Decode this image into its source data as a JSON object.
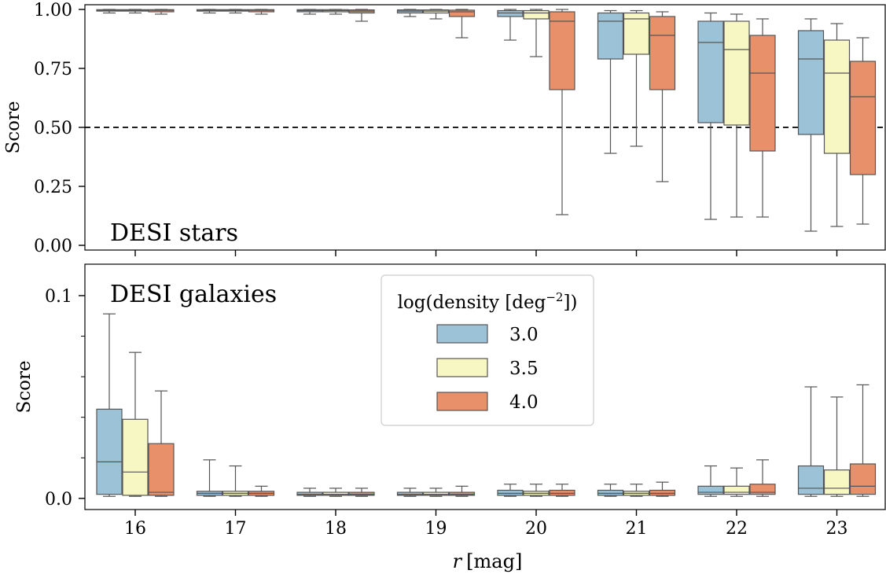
{
  "colors": {
    "3.0": "#9cc2d8",
    "3.5": "#f7f7c4",
    "4.0": "#e8906a",
    "edge": "#555555",
    "reference_line": "#000000"
  },
  "legend": {
    "title": "log(density [deg",
    "title_sup": "−2",
    "title_tail": "])",
    "placement": "upper-middle of bottom panel",
    "entries": [
      "3.0",
      "3.5",
      "4.0"
    ]
  },
  "xlabel_var": "r",
  "xlabel_unit": "[mag]",
  "chart_data": [
    {
      "type": "box",
      "panel_label": "DESI stars",
      "ylabel": "Score",
      "ylim": [
        -0.02,
        1.02
      ],
      "yticks": [
        "0.00",
        "0.25",
        "0.50",
        "0.75",
        "1.00"
      ],
      "ytick_values": [
        0,
        0.25,
        0.5,
        0.75,
        1.0
      ],
      "reference_line": {
        "y": 0.5,
        "style": "dashed"
      },
      "categories": [
        "16",
        "17",
        "18",
        "19",
        "20",
        "21",
        "22",
        "23"
      ],
      "series": [
        {
          "name": "3.0",
          "boxes": [
            {
              "lo": 0.985,
              "q1": 0.993,
              "med": 0.997,
              "q3": 0.999,
              "hi": 1.0
            },
            {
              "lo": 0.985,
              "q1": 0.993,
              "med": 0.997,
              "q3": 0.999,
              "hi": 1.0
            },
            {
              "lo": 0.98,
              "q1": 0.99,
              "med": 0.995,
              "q3": 0.999,
              "hi": 1.0
            },
            {
              "lo": 0.97,
              "q1": 0.985,
              "med": 0.993,
              "q3": 0.998,
              "hi": 1.0
            },
            {
              "lo": 0.87,
              "q1": 0.97,
              "med": 0.985,
              "q3": 0.995,
              "hi": 1.0
            },
            {
              "lo": 0.39,
              "q1": 0.79,
              "med": 0.95,
              "q3": 0.985,
              "hi": 0.995
            },
            {
              "lo": 0.11,
              "q1": 0.52,
              "med": 0.86,
              "q3": 0.95,
              "hi": 0.985
            },
            {
              "lo": 0.06,
              "q1": 0.47,
              "med": 0.79,
              "q3": 0.91,
              "hi": 0.96
            }
          ]
        },
        {
          "name": "3.5",
          "boxes": [
            {
              "lo": 0.985,
              "q1": 0.993,
              "med": 0.997,
              "q3": 0.999,
              "hi": 1.0
            },
            {
              "lo": 0.985,
              "q1": 0.993,
              "med": 0.997,
              "q3": 0.999,
              "hi": 1.0
            },
            {
              "lo": 0.98,
              "q1": 0.99,
              "med": 0.995,
              "q3": 0.999,
              "hi": 1.0
            },
            {
              "lo": 0.96,
              "q1": 0.985,
              "med": 0.993,
              "q3": 0.998,
              "hi": 1.0
            },
            {
              "lo": 0.8,
              "q1": 0.96,
              "med": 0.985,
              "q3": 0.995,
              "hi": 1.0
            },
            {
              "lo": 0.42,
              "q1": 0.81,
              "med": 0.96,
              "q3": 0.985,
              "hi": 0.995
            },
            {
              "lo": 0.12,
              "q1": 0.51,
              "med": 0.83,
              "q3": 0.95,
              "hi": 0.98
            },
            {
              "lo": 0.08,
              "q1": 0.39,
              "med": 0.73,
              "q3": 0.87,
              "hi": 0.94
            }
          ]
        },
        {
          "name": "4.0",
          "boxes": [
            {
              "lo": 0.98,
              "q1": 0.99,
              "med": 0.996,
              "q3": 0.999,
              "hi": 1.0
            },
            {
              "lo": 0.98,
              "q1": 0.99,
              "med": 0.996,
              "q3": 0.999,
              "hi": 1.0
            },
            {
              "lo": 0.95,
              "q1": 0.985,
              "med": 0.993,
              "q3": 0.998,
              "hi": 1.0
            },
            {
              "lo": 0.88,
              "q1": 0.97,
              "med": 0.99,
              "q3": 0.997,
              "hi": 1.0
            },
            {
              "lo": 0.13,
              "q1": 0.66,
              "med": 0.95,
              "q3": 0.99,
              "hi": 1.0
            },
            {
              "lo": 0.27,
              "q1": 0.66,
              "med": 0.89,
              "q3": 0.97,
              "hi": 0.99
            },
            {
              "lo": 0.12,
              "q1": 0.4,
              "med": 0.73,
              "q3": 0.89,
              "hi": 0.96
            },
            {
              "lo": 0.09,
              "q1": 0.3,
              "med": 0.63,
              "q3": 0.78,
              "hi": 0.88
            }
          ]
        }
      ]
    },
    {
      "type": "box",
      "panel_label": "DESI galaxies",
      "ylabel": "Score",
      "ylim": [
        -0.0055,
        0.1155
      ],
      "yticks": [
        "0.0",
        "0.1"
      ],
      "ytick_values": [
        0,
        0.1
      ],
      "categories": [
        "16",
        "17",
        "18",
        "19",
        "20",
        "21",
        "22",
        "23"
      ],
      "series": [
        {
          "name": "3.0",
          "boxes": [
            {
              "lo": 0.001,
              "q1": 0.002,
              "med": 0.018,
              "q3": 0.044,
              "hi": 0.091
            },
            {
              "lo": 0.001,
              "q1": 0.0015,
              "med": 0.0025,
              "q3": 0.0035,
              "hi": 0.019
            },
            {
              "lo": 0.001,
              "q1": 0.0015,
              "med": 0.002,
              "q3": 0.003,
              "hi": 0.005
            },
            {
              "lo": 0.001,
              "q1": 0.0015,
              "med": 0.002,
              "q3": 0.003,
              "hi": 0.005
            },
            {
              "lo": 0.001,
              "q1": 0.0015,
              "med": 0.0025,
              "q3": 0.004,
              "hi": 0.007
            },
            {
              "lo": 0.001,
              "q1": 0.0015,
              "med": 0.0025,
              "q3": 0.004,
              "hi": 0.007
            },
            {
              "lo": 0.001,
              "q1": 0.002,
              "med": 0.003,
              "q3": 0.006,
              "hi": 0.016
            },
            {
              "lo": 0.001,
              "q1": 0.002,
              "med": 0.005,
              "q3": 0.016,
              "hi": 0.055
            }
          ]
        },
        {
          "name": "3.5",
          "boxes": [
            {
              "lo": 0.001,
              "q1": 0.0015,
              "med": 0.013,
              "q3": 0.039,
              "hi": 0.072
            },
            {
              "lo": 0.001,
              "q1": 0.0015,
              "med": 0.0025,
              "q3": 0.0035,
              "hi": 0.016
            },
            {
              "lo": 0.001,
              "q1": 0.0015,
              "med": 0.002,
              "q3": 0.003,
              "hi": 0.005
            },
            {
              "lo": 0.001,
              "q1": 0.0015,
              "med": 0.002,
              "q3": 0.003,
              "hi": 0.005
            },
            {
              "lo": 0.001,
              "q1": 0.0015,
              "med": 0.0025,
              "q3": 0.0035,
              "hi": 0.007
            },
            {
              "lo": 0.001,
              "q1": 0.0015,
              "med": 0.0025,
              "q3": 0.0035,
              "hi": 0.007
            },
            {
              "lo": 0.001,
              "q1": 0.002,
              "med": 0.003,
              "q3": 0.006,
              "hi": 0.015
            },
            {
              "lo": 0.001,
              "q1": 0.002,
              "med": 0.005,
              "q3": 0.014,
              "hi": 0.05
            }
          ]
        },
        {
          "name": "4.0",
          "boxes": [
            {
              "lo": 0.001,
              "q1": 0.0015,
              "med": 0.003,
              "q3": 0.027,
              "hi": 0.053
            },
            {
              "lo": 0.001,
              "q1": 0.0015,
              "med": 0.0025,
              "q3": 0.0035,
              "hi": 0.006
            },
            {
              "lo": 0.001,
              "q1": 0.0015,
              "med": 0.002,
              "q3": 0.003,
              "hi": 0.005
            },
            {
              "lo": 0.001,
              "q1": 0.0015,
              "med": 0.002,
              "q3": 0.003,
              "hi": 0.006
            },
            {
              "lo": 0.001,
              "q1": 0.0015,
              "med": 0.0025,
              "q3": 0.004,
              "hi": 0.007
            },
            {
              "lo": 0.001,
              "q1": 0.0015,
              "med": 0.0025,
              "q3": 0.004,
              "hi": 0.008
            },
            {
              "lo": 0.001,
              "q1": 0.002,
              "med": 0.003,
              "q3": 0.007,
              "hi": 0.019
            },
            {
              "lo": 0.001,
              "q1": 0.002,
              "med": 0.006,
              "q3": 0.017,
              "hi": 0.056
            }
          ]
        }
      ]
    }
  ]
}
